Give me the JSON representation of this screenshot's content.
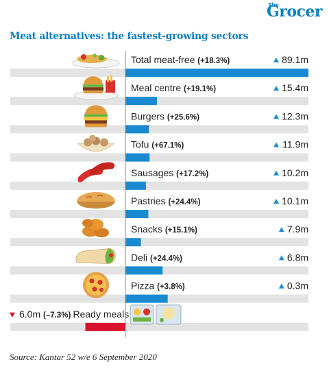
{
  "brand": {
    "logo_small": "The",
    "logo": "Grocer"
  },
  "chart_data": {
    "type": "bar",
    "title": "Meat alternatives: the fastest-growing sectors",
    "value_unit": "m",
    "categories": [
      "Total meat-free",
      "Meal centre",
      "Burgers",
      "Tofu",
      "Sausages",
      "Pastries",
      "Snacks",
      "Deli",
      "Pizza",
      "Ready meals"
    ],
    "growth_labels": [
      "(+18.3%)",
      "(+19.1%)",
      "(+25.6%)",
      "(+67.1%)",
      "(+17.2%)",
      "(+24.4%)",
      "(+15.1%)",
      "(+24.4%)",
      "(+3.8%)",
      "(–7.3%)"
    ],
    "change_labels": [
      "89.1m",
      "15.4m",
      "12.3m",
      "11.9m",
      "10.2m",
      "10.1m",
      "7.9m",
      "6.8m",
      "0.3m",
      "6.0m"
    ],
    "directions": [
      "up",
      "up",
      "up",
      "up",
      "up",
      "up",
      "up",
      "up",
      "up",
      "down"
    ],
    "values": [
      89.1,
      15.4,
      12.3,
      11.9,
      10.2,
      10.1,
      7.9,
      6.8,
      0.3,
      -6.0
    ],
    "bar_lengths": [
      100,
      17.2,
      12.8,
      13.2,
      11.2,
      12.5,
      8.5,
      20.3,
      23.1,
      -21.9
    ],
    "xlim": [
      -22,
      100
    ],
    "colors": {
      "positive": "#1a8ad0",
      "negative": "#d9112c",
      "track": "#e3e3e3",
      "axis": "#8a8a8a",
      "arrow_up": "#1a8ad0",
      "arrow_down": "#d9112c"
    },
    "icons": [
      "salad-plate-icon",
      "burger-meal-icon",
      "burger-icon",
      "tofu-bowl-icon",
      "sausages-icon",
      "pie-icon",
      "nuggets-icon",
      "wrap-icon",
      "pizza-icon",
      "ready-meal-tray-icon"
    ]
  },
  "source": "Source: Kantar 52 w/e 6 September 2020"
}
